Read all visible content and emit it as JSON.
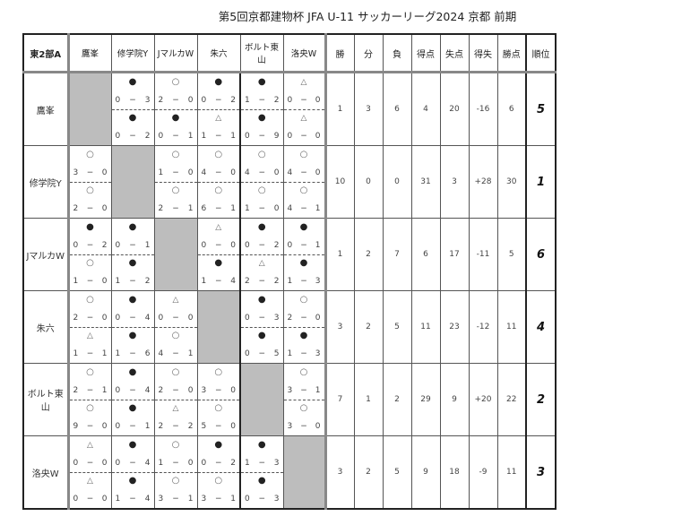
{
  "title": "第5回京都建物杯 JFA U-11 サッカーリーグ2024 京都 前期",
  "corner_label": "東2部A",
  "teams": [
    "鷹峯",
    "修学院Y",
    "JマルカW",
    "朱六",
    "ボルト東山",
    "洛央W"
  ],
  "stat_headers": [
    "勝",
    "分",
    "負",
    "得点",
    "失点",
    "得失",
    "勝点",
    "順位"
  ],
  "symbols": {
    "win": "○",
    "loss": "●",
    "draw": "△"
  },
  "results": [
    [
      null,
      [
        [
          "loss",
          "0",
          "3"
        ],
        [
          "loss",
          "0",
          "2"
        ]
      ],
      [
        [
          "win",
          "2",
          "0"
        ],
        [
          "loss",
          "0",
          "1"
        ]
      ],
      [
        [
          "loss",
          "0",
          "2"
        ],
        [
          "draw",
          "1",
          "1"
        ]
      ],
      [
        [
          "loss",
          "1",
          "2"
        ],
        [
          "loss",
          "0",
          "9"
        ]
      ],
      [
        [
          "draw",
          "0",
          "0"
        ],
        [
          "draw",
          "0",
          "0"
        ]
      ]
    ],
    [
      [
        [
          "win",
          "3",
          "0"
        ],
        [
          "win",
          "2",
          "0"
        ]
      ],
      null,
      [
        [
          "win",
          "1",
          "0"
        ],
        [
          "win",
          "2",
          "1"
        ]
      ],
      [
        [
          "win",
          "4",
          "0"
        ],
        [
          "win",
          "6",
          "1"
        ]
      ],
      [
        [
          "win",
          "4",
          "0"
        ],
        [
          "win",
          "1",
          "0"
        ]
      ],
      [
        [
          "win",
          "4",
          "0"
        ],
        [
          "win",
          "4",
          "1"
        ]
      ]
    ],
    [
      [
        [
          "loss",
          "0",
          "2"
        ],
        [
          "win",
          "1",
          "0"
        ]
      ],
      [
        [
          "loss",
          "0",
          "1"
        ],
        [
          "loss",
          "1",
          "2"
        ]
      ],
      null,
      [
        [
          "draw",
          "0",
          "0"
        ],
        [
          "loss",
          "1",
          "4"
        ]
      ],
      [
        [
          "loss",
          "0",
          "2"
        ],
        [
          "draw",
          "2",
          "2"
        ]
      ],
      [
        [
          "loss",
          "0",
          "1"
        ],
        [
          "loss",
          "1",
          "3"
        ]
      ]
    ],
    [
      [
        [
          "win",
          "2",
          "0"
        ],
        [
          "draw",
          "1",
          "1"
        ]
      ],
      [
        [
          "loss",
          "0",
          "4"
        ],
        [
          "loss",
          "1",
          "6"
        ]
      ],
      [
        [
          "draw",
          "0",
          "0"
        ],
        [
          "win",
          "4",
          "1"
        ]
      ],
      null,
      [
        [
          "loss",
          "0",
          "3"
        ],
        [
          "loss",
          "0",
          "5"
        ]
      ],
      [
        [
          "win",
          "2",
          "0"
        ],
        [
          "loss",
          "1",
          "3"
        ]
      ]
    ],
    [
      [
        [
          "win",
          "2",
          "1"
        ],
        [
          "win",
          "9",
          "0"
        ]
      ],
      [
        [
          "loss",
          "0",
          "4"
        ],
        [
          "loss",
          "0",
          "1"
        ]
      ],
      [
        [
          "win",
          "2",
          "0"
        ],
        [
          "draw",
          "2",
          "2"
        ]
      ],
      [
        [
          "win",
          "3",
          "0"
        ],
        [
          "win",
          "5",
          "0"
        ]
      ],
      null,
      [
        [
          "win",
          "3",
          "1"
        ],
        [
          "win",
          "3",
          "0"
        ]
      ]
    ],
    [
      [
        [
          "draw",
          "0",
          "0"
        ],
        [
          "draw",
          "0",
          "0"
        ]
      ],
      [
        [
          "loss",
          "0",
          "4"
        ],
        [
          "loss",
          "1",
          "4"
        ]
      ],
      [
        [
          "win",
          "1",
          "0"
        ],
        [
          "win",
          "3",
          "1"
        ]
      ],
      [
        [
          "loss",
          "0",
          "2"
        ],
        [
          "win",
          "3",
          "1"
        ]
      ],
      [
        [
          "loss",
          "1",
          "3"
        ],
        [
          "loss",
          "0",
          "3"
        ]
      ],
      null
    ]
  ],
  "stats": [
    [
      "1",
      "3",
      "6",
      "4",
      "20",
      "-16",
      "6",
      "5"
    ],
    [
      "10",
      "0",
      "0",
      "31",
      "3",
      "+28",
      "30",
      "1"
    ],
    [
      "1",
      "2",
      "7",
      "6",
      "17",
      "-11",
      "5",
      "6"
    ],
    [
      "3",
      "2",
      "5",
      "11",
      "23",
      "-12",
      "11",
      "4"
    ],
    [
      "7",
      "1",
      "2",
      "29",
      "9",
      "+20",
      "22",
      "2"
    ],
    [
      "3",
      "2",
      "5",
      "9",
      "18",
      "-9",
      "11",
      "3"
    ]
  ],
  "colors": {
    "self_match_cell": "#bdbdbd"
  }
}
